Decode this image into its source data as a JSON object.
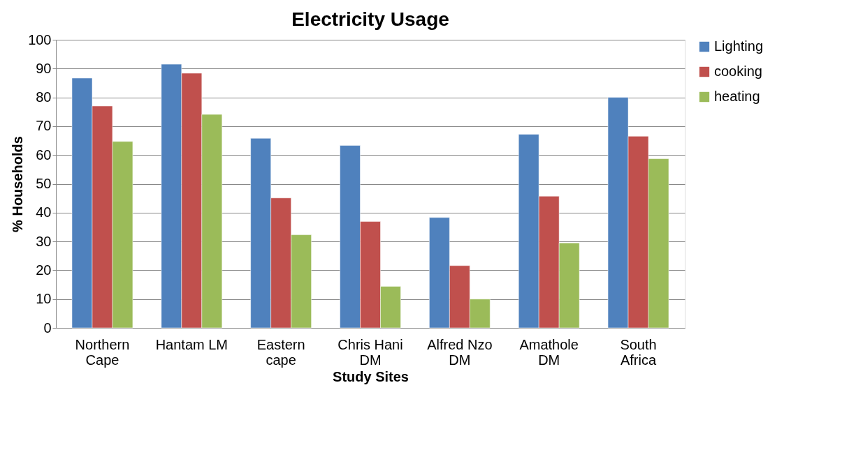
{
  "chart_data": {
    "type": "bar",
    "title": "Electricity Usage",
    "xlabel": "Study Sites",
    "ylabel": "% Households",
    "categories": [
      "Northern\nCape",
      "Hantam LM",
      "Eastern\ncape",
      "Chris Hani\nDM",
      "Alfred Nzo\nDM",
      "Amathole\nDM",
      "South\nAfrica"
    ],
    "series": [
      {
        "name": "Lighting",
        "color": "#4f81bd",
        "values": [
          86.7,
          91.5,
          65.8,
          63.3,
          38.3,
          67.2,
          80.0
        ]
      },
      {
        "name": "cooking",
        "color": "#c0504d",
        "values": [
          77.0,
          88.4,
          45.1,
          36.9,
          21.6,
          45.7,
          66.5
        ]
      },
      {
        "name": "heating",
        "color": "#9bbb59",
        "values": [
          64.7,
          74.1,
          32.3,
          14.4,
          10.0,
          29.5,
          58.7
        ]
      }
    ],
    "ylim": [
      0,
      100
    ],
    "yticks": [
      0,
      10,
      20,
      30,
      40,
      50,
      60,
      70,
      80,
      90,
      100
    ],
    "grid": "y",
    "legend": "right"
  }
}
